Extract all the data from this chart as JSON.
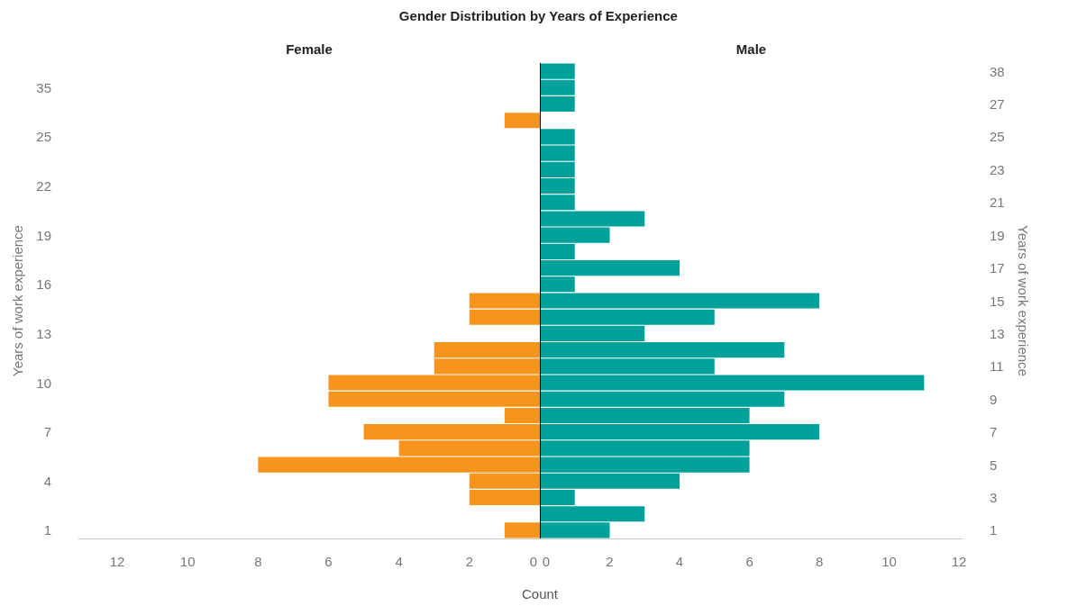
{
  "chart_data": [
    {
      "type": "bar",
      "orientation": "horizontal",
      "title": "Gender Distribution by Years of Experience",
      "xlabel": "Count",
      "ylabel": "Years of work experience",
      "categories": [
        null,
        "35",
        null,
        null,
        "25",
        null,
        null,
        "22",
        null,
        null,
        "19",
        null,
        null,
        "16",
        null,
        null,
        "13",
        null,
        null,
        "10",
        null,
        null,
        "7",
        null,
        null,
        "4",
        null,
        null,
        "1"
      ],
      "series": [
        {
          "name": "Female",
          "color": "#f7941d",
          "values": [
            0,
            0,
            0,
            1,
            0,
            0,
            0,
            0,
            0,
            0,
            0,
            0,
            0,
            0,
            2,
            2,
            0,
            3,
            3,
            6,
            6,
            1,
            5,
            4,
            8,
            2,
            2,
            0,
            1
          ]
        }
      ],
      "xlim": [
        13.1,
        0
      ],
      "xticks": [
        12,
        10,
        8,
        6,
        4,
        2,
        0
      ],
      "grid": false,
      "legend": false
    },
    {
      "type": "bar",
      "orientation": "horizontal",
      "ylabel": "Years of work experience",
      "categories": [
        "38",
        null,
        "27",
        null,
        "25",
        null,
        "23",
        null,
        "21",
        null,
        "19",
        null,
        "17",
        null,
        "15",
        null,
        "13",
        null,
        "11",
        null,
        "9",
        null,
        "7",
        null,
        "5",
        null,
        "3",
        null,
        "1"
      ],
      "series": [
        {
          "name": "Male",
          "color": "#00a19a",
          "values": [
            1,
            1,
            1,
            0,
            1,
            1,
            1,
            1,
            1,
            3,
            2,
            1,
            4,
            1,
            8,
            5,
            3,
            7,
            5,
            11,
            7,
            6,
            8,
            6,
            6,
            4,
            1,
            3,
            2
          ]
        }
      ],
      "xlim": [
        0,
        12.1
      ],
      "xticks": [
        0,
        2,
        4,
        6,
        8,
        10,
        12
      ],
      "ref_lines": [
        {
          "axis": "x",
          "value": 0,
          "color": "#000000"
        }
      ],
      "grid": false,
      "legend": false
    }
  ]
}
